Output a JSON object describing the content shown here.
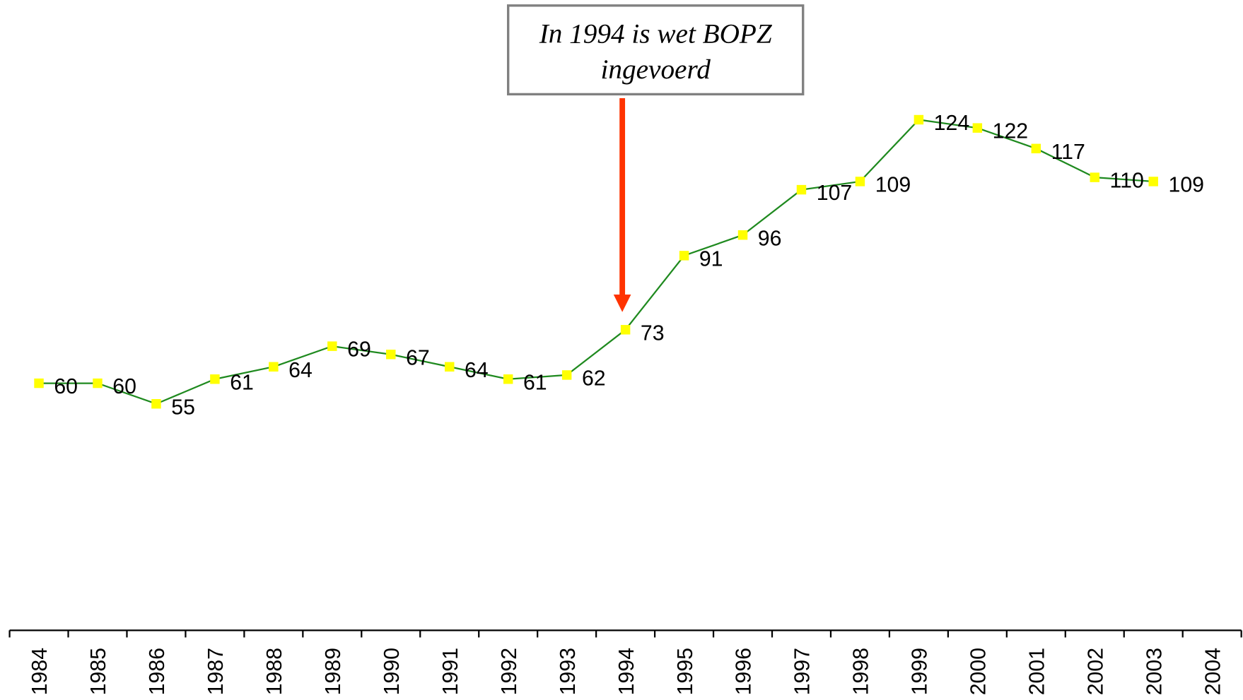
{
  "chart_data": {
    "type": "line",
    "annotation": [
      "In 1994 is wet  BOPZ",
      "ingevoerd"
    ],
    "categories": [
      "1984",
      "1985",
      "1986",
      "1987",
      "1988",
      "1989",
      "1990",
      "1991",
      "1992",
      "1993",
      "1994",
      "1995",
      "1996",
      "1997",
      "1998",
      "1999",
      "2000",
      "2001",
      "2002",
      "2003",
      "2004"
    ],
    "series": [
      {
        "color": "#1f8a1f",
        "marker_color": "#ffff00",
        "values": [
          60,
          60,
          55,
          61,
          64,
          69,
          67,
          64,
          61,
          62,
          73,
          91,
          96,
          107,
          109,
          124,
          122,
          117,
          110,
          109,
          null
        ]
      }
    ],
    "ylim": [
      0,
      150
    ]
  }
}
